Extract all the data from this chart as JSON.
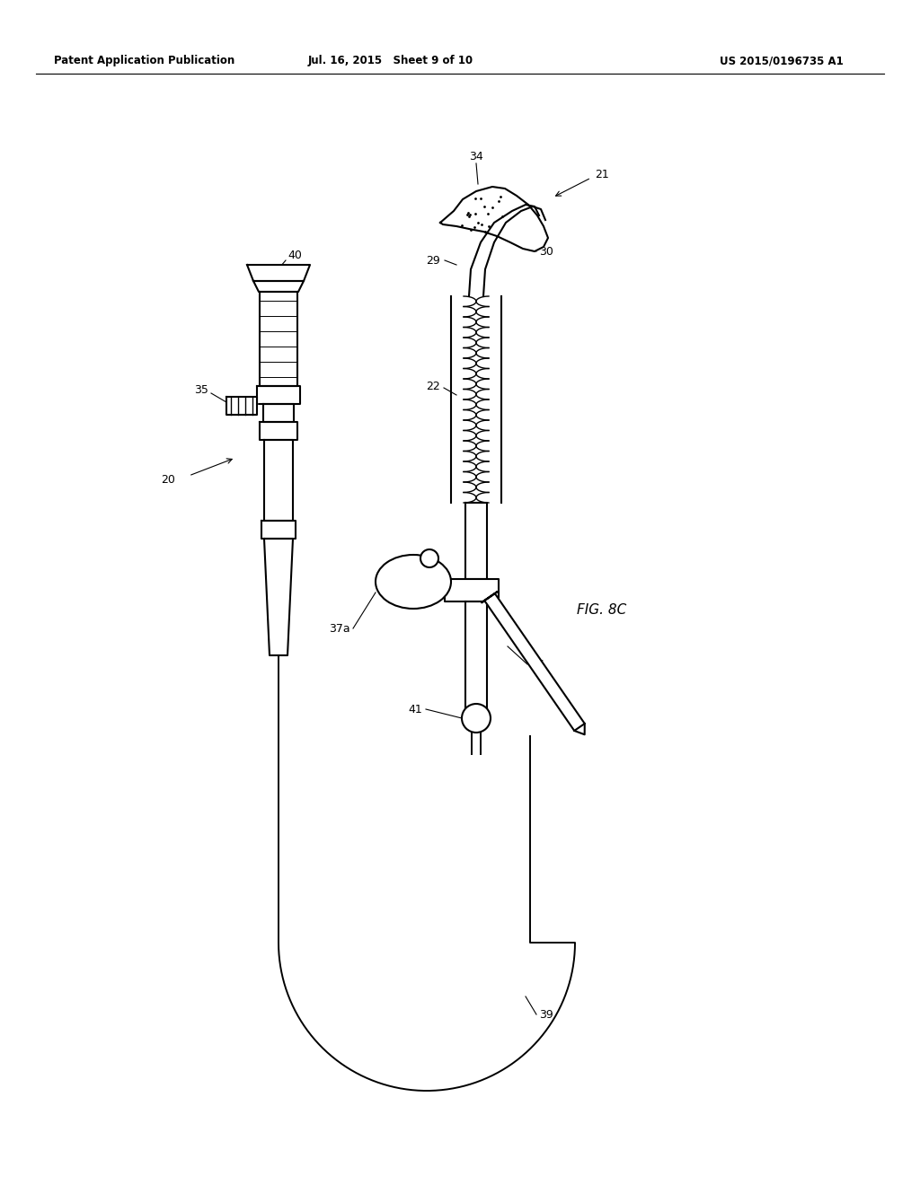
{
  "background_color": "#ffffff",
  "header_left": "Patent Application Publication",
  "header_center": "Jul. 16, 2015   Sheet 9 of 10",
  "header_right": "US 2015/0196735 A1",
  "fig_label": "FIG. 8C",
  "line_color": "#000000"
}
